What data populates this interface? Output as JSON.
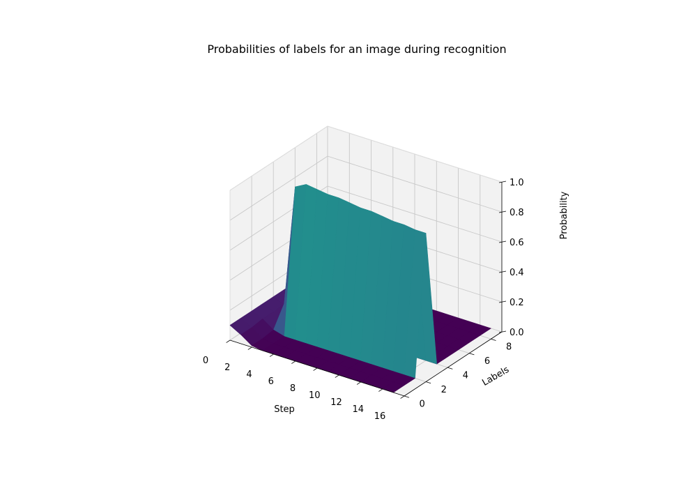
{
  "chart_data": {
    "type": "surface3d",
    "title": "Probabilities of labels for an image during recognition",
    "xlabel": "Step",
    "ylabel": "Labels",
    "zlabel": "Probability",
    "xlim": [
      0,
      16
    ],
    "ylim": [
      0,
      9
    ],
    "zlim": [
      0,
      1
    ],
    "x_ticks": [
      0,
      2,
      4,
      6,
      8,
      10,
      12,
      14,
      16
    ],
    "y_ticks": [
      0,
      2,
      4,
      6,
      8
    ],
    "z_ticks": [
      "0.0",
      "0.2",
      "0.4",
      "0.6",
      "0.8",
      "1.0"
    ],
    "x_tick_labels": [
      "0",
      "2",
      "4",
      "6",
      "8",
      "10",
      "12",
      "14",
      "16"
    ],
    "y_tick_labels": [
      "0",
      "2",
      "4",
      "6",
      "8"
    ],
    "labels": [
      0,
      1,
      2,
      3,
      4,
      5,
      6,
      7,
      8,
      9
    ],
    "steps": [
      0,
      1,
      2,
      3,
      4,
      5,
      6,
      7,
      8,
      9,
      10,
      11,
      12,
      13,
      14,
      15
    ],
    "probabilities": [
      [
        0.1,
        0.06,
        0.01,
        0.0,
        0.0,
        0.0,
        0.0,
        0.0,
        0.0,
        0.0,
        0.0,
        0.0,
        0.0,
        0.0,
        0.0,
        0.0
      ],
      [
        0.1,
        0.06,
        0.01,
        0.0,
        0.0,
        0.0,
        0.0,
        0.0,
        0.0,
        0.0,
        0.0,
        0.0,
        0.0,
        0.0,
        0.0,
        0.0
      ],
      [
        0.1,
        0.07,
        0.02,
        0.0,
        0.0,
        0.0,
        0.0,
        0.0,
        0.0,
        0.0,
        0.0,
        0.0,
        0.0,
        0.0,
        0.0,
        0.0
      ],
      [
        0.1,
        0.07,
        0.15,
        0.95,
        0.99,
        0.98,
        0.97,
        0.97,
        0.96,
        0.95,
        0.95,
        0.94,
        0.93,
        0.93,
        0.92,
        0.92
      ],
      [
        0.1,
        0.07,
        0.45,
        0.03,
        0.0,
        0.0,
        0.0,
        0.0,
        0.0,
        0.0,
        0.0,
        0.0,
        0.0,
        0.0,
        0.0,
        0.0
      ],
      [
        0.1,
        0.08,
        0.05,
        0.0,
        0.0,
        0.0,
        0.0,
        0.0,
        0.0,
        0.0,
        0.0,
        0.0,
        0.0,
        0.0,
        0.0,
        0.0
      ],
      [
        0.1,
        0.08,
        0.03,
        0.0,
        0.0,
        0.0,
        0.0,
        0.0,
        0.0,
        0.0,
        0.0,
        0.0,
        0.0,
        0.0,
        0.0,
        0.0
      ],
      [
        0.1,
        0.08,
        0.03,
        0.0,
        0.0,
        0.0,
        0.0,
        0.0,
        0.0,
        0.0,
        0.0,
        0.0,
        0.0,
        0.0,
        0.0,
        0.0
      ],
      [
        0.1,
        0.08,
        0.02,
        0.0,
        0.0,
        0.0,
        0.0,
        0.0,
        0.0,
        0.0,
        0.0,
        0.0,
        0.0,
        0.0,
        0.0,
        0.0
      ],
      [
        0.1,
        0.08,
        0.02,
        0.0,
        0.0,
        0.0,
        0.0,
        0.0,
        0.0,
        0.0,
        0.0,
        0.0,
        0.0,
        0.0,
        0.0,
        0.0
      ]
    ],
    "colormap": "viridis",
    "colors": {
      "low": "#440154",
      "mid": "#21918c",
      "high": "#fde725",
      "pane": "#f2f2f2",
      "grid": "#c8c8c8"
    },
    "grid": true
  }
}
